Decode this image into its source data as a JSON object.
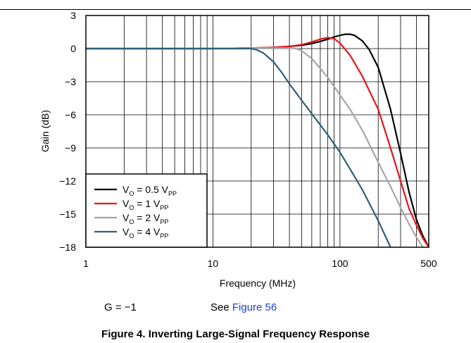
{
  "chart_data": {
    "type": "line",
    "xlabel": "Frequency (MHz)",
    "ylabel": "Gain (dB)",
    "xscale": "log",
    "xlim": [
      1,
      500
    ],
    "ylim": [
      -18,
      3
    ],
    "xticks": [
      1,
      10,
      100,
      500
    ],
    "xtick_labels": [
      "1",
      "10",
      "100",
      "500"
    ],
    "yticks": [
      3,
      0,
      -3,
      -6,
      -9,
      -12,
      -15,
      -18
    ],
    "ytick_labels": [
      "3",
      "0",
      "−3",
      "−6",
      "−9",
      "−12",
      "−15",
      "−18"
    ],
    "grid": true,
    "legend_position": "bottom-left",
    "series": [
      {
        "name": "V_O = 0.5 V_PP",
        "label_main": "V",
        "label_sub": "O",
        "label_mid": " = 0.5 V",
        "label_sub2": "PP",
        "color": "#000000",
        "x": [
          1,
          10,
          20,
          30,
          40,
          50,
          60,
          70,
          80,
          90,
          100,
          110,
          120,
          130,
          150,
          170,
          200,
          250,
          300,
          350,
          400,
          450,
          500
        ],
        "y": [
          0,
          0,
          0.05,
          0.1,
          0.2,
          0.3,
          0.45,
          0.65,
          0.85,
          1.05,
          1.2,
          1.3,
          1.3,
          1.2,
          0.7,
          -0.1,
          -1.7,
          -5.5,
          -9.5,
          -13,
          -15.5,
          -17,
          -18
        ]
      },
      {
        "name": "V_O = 1 V_PP",
        "label_main": "V",
        "label_sub": "O",
        "label_mid": " = 1 V",
        "label_sub2": "PP",
        "color": "#e8121a",
        "x": [
          1,
          10,
          20,
          30,
          40,
          50,
          60,
          70,
          80,
          90,
          100,
          120,
          150,
          200,
          250,
          300,
          350,
          400,
          450,
          500
        ],
        "y": [
          0,
          0,
          0.05,
          0.1,
          0.2,
          0.35,
          0.6,
          0.85,
          1.0,
          0.9,
          0.5,
          -0.6,
          -2.5,
          -5.5,
          -9,
          -12,
          -14.5,
          -16,
          -17.2,
          -18
        ]
      },
      {
        "name": "V_O = 2 V_PP",
        "label_main": "V",
        "label_sub": "O",
        "label_mid": " = 2 V",
        "label_sub2": "PP",
        "color": "#a6a6a6",
        "x": [
          1,
          10,
          20,
          30,
          40,
          45,
          50,
          60,
          70,
          80,
          100,
          120,
          150,
          200,
          250,
          300,
          350,
          400,
          450
        ],
        "y": [
          0,
          0,
          0.05,
          0.05,
          0.05,
          0.0,
          -0.2,
          -0.9,
          -1.8,
          -2.6,
          -4.2,
          -5.5,
          -7.4,
          -10.3,
          -12.5,
          -14.4,
          -15.9,
          -17.1,
          -18
        ]
      },
      {
        "name": "V_O = 4 V_PP",
        "label_main": "V",
        "label_sub": "O",
        "label_mid": " = 4 V",
        "label_sub2": "PP",
        "color": "#2f5f78",
        "x": [
          1,
          10,
          15,
          20,
          22,
          25,
          30,
          35,
          40,
          50,
          60,
          80,
          100,
          120,
          150,
          200,
          250
        ],
        "y": [
          0,
          0,
          0.0,
          0.0,
          -0.1,
          -0.4,
          -1.2,
          -2.2,
          -3.2,
          -4.7,
          -5.9,
          -7.8,
          -9.4,
          -10.9,
          -12.8,
          -15.6,
          -18
        ]
      }
    ]
  },
  "captions": {
    "gain": "G = −1",
    "see_prefix": "See",
    "see_link": "Figure 56",
    "figure_title": "Figure 4. Inverting Large-Signal Frequency Response"
  }
}
